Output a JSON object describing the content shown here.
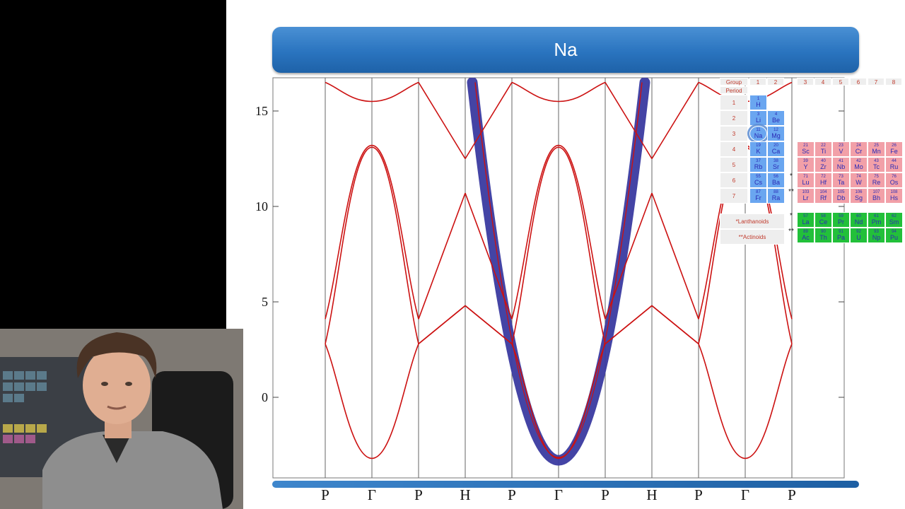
{
  "slide": {
    "title": "Na"
  },
  "chart_data": {
    "type": "line",
    "title": "Na",
    "xlabel": "",
    "ylabel": "",
    "ylim": [
      -3.5,
      16.5
    ],
    "yticks": [
      0,
      5,
      10,
      15
    ],
    "xticks": [
      "P",
      "Γ",
      "P",
      "H",
      "P",
      "Γ",
      "P",
      "H",
      "P",
      "Γ",
      "P"
    ],
    "grid": "vertical lines at high-symmetry points",
    "series": [
      {
        "color": "#cc1111",
        "description": "bands",
        "segments": [
          {
            "from": "P",
            "to": "Γ",
            "curves": [
              [
                2.8,
                -3.2
              ],
              [
                4.1,
                13.2
              ],
              [
                2.8,
                13.1
              ],
              [
                16.5,
                15.5
              ]
            ]
          },
          {
            "from": "Γ",
            "to": "P",
            "curves": [
              [
                -3.2,
                2.8
              ],
              [
                13.2,
                4.1
              ],
              [
                13.1,
                2.8
              ],
              [
                15.5,
                16.5
              ]
            ]
          },
          {
            "from": "P",
            "to": "H",
            "curves": [
              [
                2.8,
                4.8
              ],
              [
                2.8,
                4.8
              ],
              [
                4.1,
                10.7
              ],
              [
                16.5,
                12.5
              ]
            ]
          },
          {
            "from": "H",
            "to": "P",
            "curves": [
              [
                4.8,
                2.8
              ],
              [
                4.8,
                2.8
              ],
              [
                10.7,
                4.1
              ],
              [
                12.5,
                16.5
              ]
            ]
          }
        ]
      },
      {
        "color": "#3a3aa0",
        "description": "highlighted free-electron band",
        "values": [
          [
            -3.3,
            16.5
          ]
        ]
      }
    ]
  },
  "periodic_table": {
    "group_label": "Group",
    "period_label": "Period",
    "groups": [
      "1",
      "2",
      "3",
      "4",
      "5",
      "6",
      "7",
      "8"
    ],
    "periods": [
      "1",
      "2",
      "3",
      "4",
      "5",
      "6",
      "7"
    ],
    "lanthanoids_label": "*Lanthanoids",
    "actinoids_label": "**Actinoids",
    "marker_single": "*",
    "marker_double": "**",
    "highlighted": "Na",
    "colors": {
      "s_block": "#6aa6f0",
      "d_block": "#f2a0a8",
      "f_block": "#22c03a",
      "label_bg": "#eeeeee"
    },
    "s_block": [
      {
        "num": "1",
        "sym": "H"
      },
      {
        "num": "3",
        "sym": "Li"
      },
      {
        "num": "4",
        "sym": "Be"
      },
      {
        "num": "11",
        "sym": "Na"
      },
      {
        "num": "12",
        "sym": "Mg"
      },
      {
        "num": "19",
        "sym": "K"
      },
      {
        "num": "20",
        "sym": "Ca"
      },
      {
        "num": "37",
        "sym": "Rb"
      },
      {
        "num": "38",
        "sym": "Sr"
      },
      {
        "num": "55",
        "sym": "Cs"
      },
      {
        "num": "56",
        "sym": "Ba"
      },
      {
        "num": "87",
        "sym": "Fr"
      },
      {
        "num": "88",
        "sym": "Ra"
      }
    ],
    "d_block": [
      [
        {
          "num": "21",
          "sym": "Sc"
        },
        {
          "num": "22",
          "sym": "Ti"
        },
        {
          "num": "23",
          "sym": "V"
        },
        {
          "num": "24",
          "sym": "Cr"
        },
        {
          "num": "25",
          "sym": "Mn"
        },
        {
          "num": "26",
          "sym": "Fe"
        }
      ],
      [
        {
          "num": "39",
          "sym": "Y"
        },
        {
          "num": "40",
          "sym": "Zr"
        },
        {
          "num": "41",
          "sym": "Nb"
        },
        {
          "num": "42",
          "sym": "Mo"
        },
        {
          "num": "43",
          "sym": "Tc"
        },
        {
          "num": "44",
          "sym": "Ru"
        }
      ],
      [
        {
          "num": "71",
          "sym": "Lu"
        },
        {
          "num": "72",
          "sym": "Hf"
        },
        {
          "num": "73",
          "sym": "Ta"
        },
        {
          "num": "74",
          "sym": "W"
        },
        {
          "num": "75",
          "sym": "Re"
        },
        {
          "num": "76",
          "sym": "Os"
        }
      ],
      [
        {
          "num": "103",
          "sym": "Lr"
        },
        {
          "num": "104",
          "sym": "Rf"
        },
        {
          "num": "105",
          "sym": "Db"
        },
        {
          "num": "106",
          "sym": "Sg"
        },
        {
          "num": "107",
          "sym": "Bh"
        },
        {
          "num": "108",
          "sym": "Hs"
        }
      ]
    ],
    "f_block": [
      [
        {
          "num": "57",
          "sym": "La"
        },
        {
          "num": "58",
          "sym": "Ce"
        },
        {
          "num": "59",
          "sym": "Pr"
        },
        {
          "num": "60",
          "sym": "Nd"
        },
        {
          "num": "61",
          "sym": "Pm"
        },
        {
          "num": "62",
          "sym": "Sm"
        }
      ],
      [
        {
          "num": "89",
          "sym": "Ac"
        },
        {
          "num": "90",
          "sym": "Th"
        },
        {
          "num": "91",
          "sym": "Pa"
        },
        {
          "num": "92",
          "sym": "U"
        },
        {
          "num": "93",
          "sym": "Np"
        },
        {
          "num": "94",
          "sym": "Pu"
        }
      ]
    ]
  },
  "webcam": {
    "description_icon": "presenter-video"
  }
}
